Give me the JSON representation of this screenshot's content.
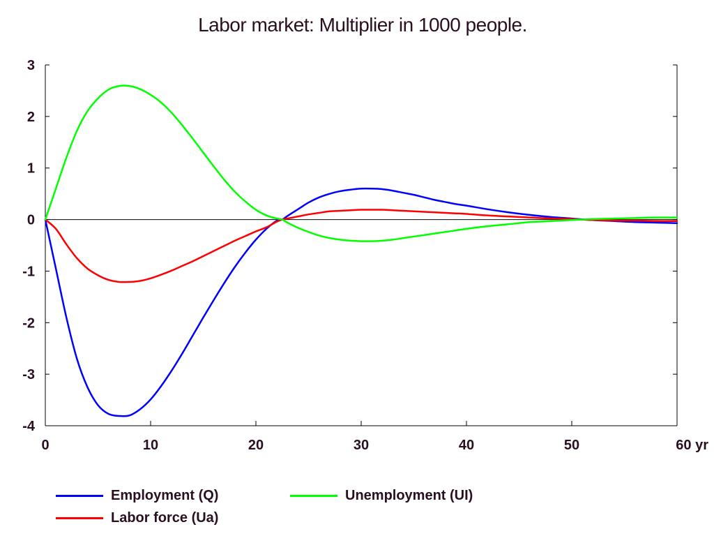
{
  "chart_data": {
    "type": "line",
    "title": "Labor market: Multiplier in 1000 people.",
    "xlabel": "",
    "ylabel": "",
    "xlim": [
      0,
      60
    ],
    "ylim": [
      -4,
      3
    ],
    "x_ticks": [
      0,
      10,
      20,
      30,
      40,
      50,
      60
    ],
    "x_tick_labels": [
      "0",
      "10",
      "20",
      "30",
      "40",
      "50",
      "60 yr"
    ],
    "y_ticks": [
      3,
      2,
      1,
      0,
      -1,
      -2,
      -3,
      -4
    ],
    "y_tick_labels": [
      "3",
      "2",
      "1",
      "0",
      "-1",
      "-2",
      "-3",
      "-4"
    ],
    "grid": false,
    "zero_line": true,
    "legend_position": "bottom",
    "x": [
      0,
      1,
      2,
      3,
      4,
      5,
      6,
      7,
      8,
      9,
      10,
      11,
      12,
      13,
      14,
      15,
      16,
      17,
      18,
      19,
      20,
      21,
      22,
      22.5,
      23,
      24,
      25,
      26,
      27,
      28,
      29,
      30,
      31,
      32,
      33,
      34,
      35,
      36,
      37,
      38,
      39,
      40,
      42,
      44,
      46,
      48,
      50,
      52,
      54,
      56,
      58,
      60
    ],
    "series": [
      {
        "name": "Employment (Q)",
        "color": "#0000ff",
        "values": [
          0,
          -0.95,
          -1.9,
          -2.7,
          -3.25,
          -3.6,
          -3.77,
          -3.81,
          -3.8,
          -3.68,
          -3.49,
          -3.23,
          -2.93,
          -2.6,
          -2.25,
          -1.9,
          -1.56,
          -1.23,
          -0.92,
          -0.64,
          -0.39,
          -0.18,
          -0.02,
          0,
          0.07,
          0.2,
          0.33,
          0.43,
          0.5,
          0.55,
          0.58,
          0.6,
          0.6,
          0.59,
          0.56,
          0.52,
          0.48,
          0.43,
          0.38,
          0.34,
          0.3,
          0.27,
          0.2,
          0.14,
          0.09,
          0.05,
          0.02,
          -0.01,
          -0.03,
          -0.05,
          -0.06,
          -0.07
        ]
      },
      {
        "name": "Labor force (Ua)",
        "color": "#ff0000",
        "values": [
          0,
          -0.18,
          -0.48,
          -0.75,
          -0.95,
          -1.08,
          -1.17,
          -1.21,
          -1.21,
          -1.19,
          -1.14,
          -1.07,
          -0.99,
          -0.9,
          -0.81,
          -0.71,
          -0.61,
          -0.51,
          -0.41,
          -0.32,
          -0.23,
          -0.15,
          -0.04,
          0,
          0.02,
          0.06,
          0.1,
          0.13,
          0.16,
          0.17,
          0.18,
          0.19,
          0.19,
          0.19,
          0.18,
          0.17,
          0.16,
          0.15,
          0.14,
          0.13,
          0.12,
          0.11,
          0.08,
          0.06,
          0.04,
          0.02,
          0.01,
          -0.01,
          -0.02,
          -0.02,
          -0.03,
          -0.03
        ]
      },
      {
        "name": "Unemployment (UI)",
        "color": "#00ff00",
        "values": [
          0,
          0.6,
          1.2,
          1.72,
          2.1,
          2.35,
          2.52,
          2.59,
          2.59,
          2.53,
          2.42,
          2.27,
          2.07,
          1.83,
          1.57,
          1.3,
          1.03,
          0.77,
          0.54,
          0.35,
          0.19,
          0.08,
          0.02,
          0,
          -0.06,
          -0.16,
          -0.24,
          -0.31,
          -0.36,
          -0.39,
          -0.41,
          -0.42,
          -0.42,
          -0.41,
          -0.39,
          -0.36,
          -0.33,
          -0.3,
          -0.27,
          -0.24,
          -0.21,
          -0.18,
          -0.13,
          -0.09,
          -0.05,
          -0.03,
          -0.01,
          0.01,
          0.02,
          0.03,
          0.04,
          0.04
        ]
      }
    ]
  }
}
